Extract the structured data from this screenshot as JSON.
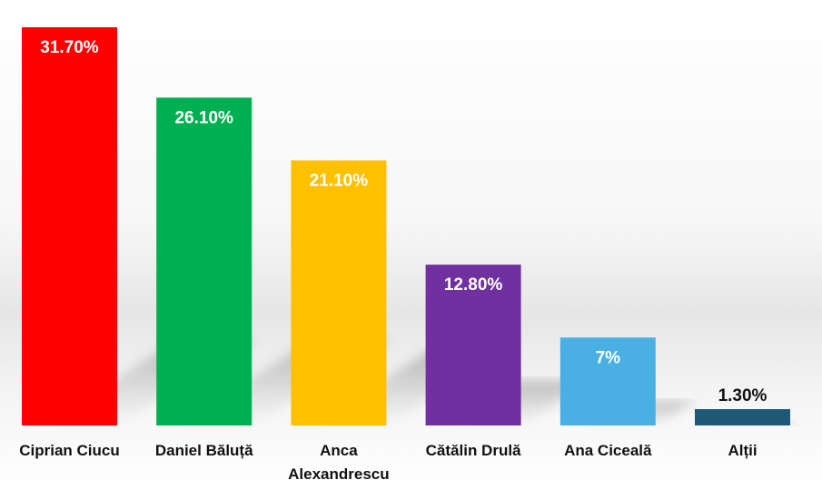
{
  "chart_data": {
    "type": "bar",
    "categories": [
      "Ciprian Ciucu",
      "Daniel Băluță",
      "Anca Alexandrescu",
      "Cătălin Drulă",
      "Ana Ciceală",
      "Alții"
    ],
    "category_lines": [
      [
        "Ciprian Ciucu"
      ],
      [
        "Daniel Băluță"
      ],
      [
        "Anca",
        "Alexandrescu"
      ],
      [
        "Cătălin Drulă"
      ],
      [
        "Ana Ciceală"
      ],
      [
        "Alții"
      ]
    ],
    "values": [
      31.7,
      26.1,
      21.1,
      12.8,
      7,
      1.3
    ],
    "value_labels": [
      "31.70%",
      "26.10%",
      "21.10%",
      "12.80%",
      "7%",
      "1.30%"
    ],
    "colors": [
      "#ff0000",
      "#00b050",
      "#ffc000",
      "#7030a0",
      "#4ab0e4",
      "#1e5a78"
    ],
    "label_colors": [
      "#ffffff",
      "#ffffff",
      "#ffffff",
      "#ffffff",
      "#ffffff",
      "#111111"
    ],
    "ylim": [
      0,
      31.7
    ],
    "grid": false,
    "title": "",
    "xlabel": "",
    "ylabel": ""
  }
}
